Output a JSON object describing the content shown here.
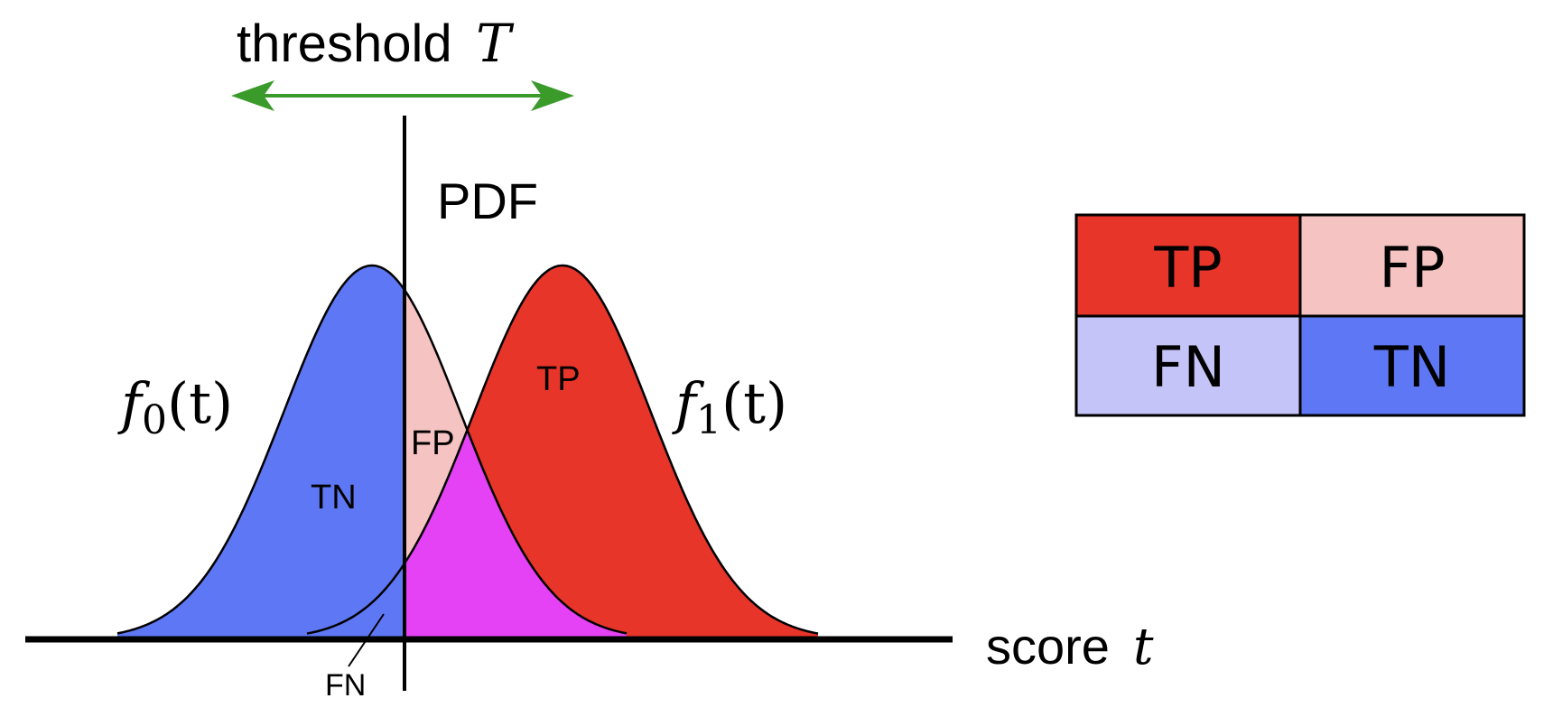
{
  "threshold": {
    "label": "threshold",
    "symbol": "T"
  },
  "axis": {
    "y_label": "PDF",
    "x_label": "score",
    "x_symbol": "t"
  },
  "curves": {
    "f0": {
      "fn": "f",
      "sub": "0",
      "arg": "(t)"
    },
    "f1": {
      "fn": "f",
      "sub": "1",
      "arg": "(t)"
    }
  },
  "regions": {
    "tn": "TN",
    "fp": "FP",
    "tp": "TP",
    "fn": "FN"
  },
  "legend": {
    "tp": "TP",
    "fp": "FP",
    "fn": "FN",
    "tn": "TN"
  },
  "colors": {
    "tp": "#e8352a",
    "fp": "#f5c4c2",
    "fn": "#c4c4f8",
    "tn": "#5e78f5",
    "overlap": "#e642f5",
    "arrow": "#3a9a2a"
  }
}
